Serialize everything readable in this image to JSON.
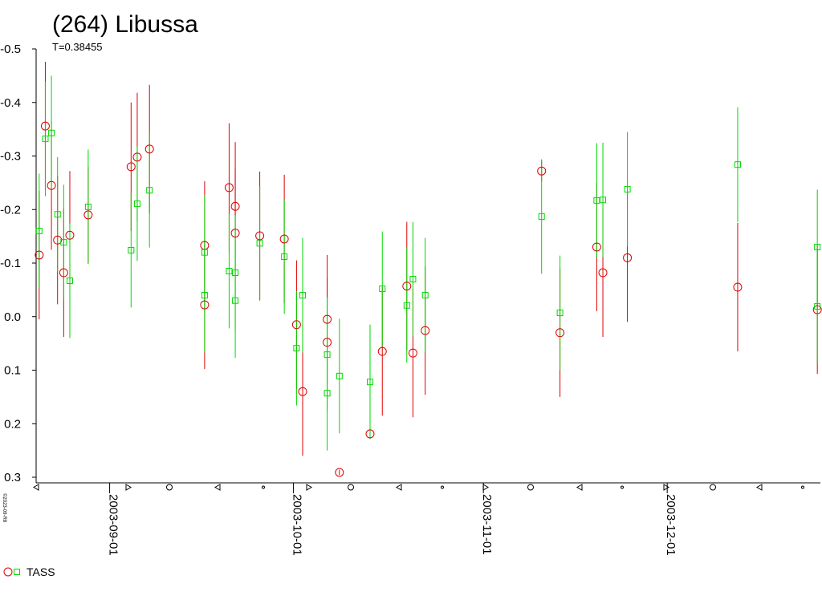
{
  "chart_data": {
    "type": "scatter",
    "title": "(264) Libussa",
    "subtitle": "T=0.38455",
    "annotations": [
      "©2023-09-R8"
    ],
    "xlim": [
      "2003-08-20",
      "2003-12-26"
    ],
    "xticks": [
      "2003-09-01",
      "2003-10-01",
      "2003-11-01",
      "2003-12-01"
    ],
    "ylim": [
      -0.5,
      0.3
    ],
    "inverted_y": true,
    "yticks": [
      -0.5,
      -0.4,
      -0.3,
      -0.2,
      -0.1,
      {
        "value": 0,
        "label": "0.0"
      },
      0.1,
      0.2,
      0.3
    ],
    "legend": "bottom-left",
    "series": [
      {
        "name": "TASS",
        "marker": "circle",
        "color": "#e00000",
        "marker2": "square",
        "color2": "#00d800",
        "x": [
          "2003-08-20",
          "2003-08-21",
          "2003-08-22",
          "2003-08-23",
          "2003-08-24",
          "2003-08-25",
          "2003-08-28",
          "2003-09-04",
          "2003-09-05",
          "2003-09-07",
          "2003-09-16",
          "2003-09-16",
          "2003-09-20",
          "2003-09-21",
          "2003-09-21",
          "2003-09-25",
          "2003-09-29",
          "2003-10-01",
          "2003-10-02",
          "2003-10-06",
          "2003-10-06",
          "2003-10-08",
          "2003-10-13",
          "2003-10-15",
          "2003-10-19",
          "2003-10-20",
          "2003-10-22",
          "2003-11-10",
          "2003-11-13",
          "2003-11-19",
          "2003-11-20",
          "2003-11-24",
          "2003-12-12",
          "2003-12-25",
          "2003-12-25"
        ],
        "values": [
          -0.115,
          -0.356,
          -0.245,
          -0.143,
          -0.082,
          -0.152,
          -0.19,
          -0.28,
          -0.298,
          -0.313,
          -0.133,
          -0.022,
          -0.241,
          -0.206,
          -0.156,
          -0.151,
          -0.145,
          0.015,
          0.14,
          0.005,
          0.048,
          0.291,
          0.219,
          0.065,
          -0.057,
          0.068,
          0.026,
          -0.272,
          0.03,
          -0.13,
          -0.082,
          -0.11,
          -0.055,
          -0.013,
          null
        ],
        "errors": [
          0.12,
          0.12,
          0.12,
          0.12,
          0.12,
          0.12,
          0.09,
          0.12,
          0.12,
          0.12,
          0.12,
          0.12,
          0.12,
          0.12,
          0.12,
          0.12,
          0.12,
          0.12,
          0.12,
          0.12,
          0.12,
          0.005,
          0.005,
          0.12,
          0.12,
          0.12,
          0.12,
          0.02,
          0.12,
          0.12,
          0.12,
          0.12,
          0.12,
          0.12,
          null
        ],
        "values2": [
          -0.16,
          -0.332,
          -0.343,
          -0.191,
          -0.139,
          -0.067,
          -0.205,
          -0.124,
          -0.211,
          -0.236,
          -0.12,
          -0.04,
          -0.085,
          -0.082,
          -0.03,
          -0.137,
          -0.112,
          0.059,
          -0.04,
          0.071,
          0.143,
          0.111,
          0.122,
          -0.052,
          -0.021,
          -0.07,
          -0.04,
          -0.187,
          -0.007,
          -0.217,
          -0.218,
          -0.238,
          -0.284,
          -0.019,
          -0.13
        ],
        "errors2": [
          0.107,
          0.107,
          0.107,
          0.107,
          0.107,
          0.107,
          0.107,
          0.107,
          0.107,
          0.107,
          0.107,
          0.107,
          0.107,
          0.107,
          0.107,
          0.107,
          0.107,
          0.107,
          0.107,
          0.107,
          0.107,
          0.107,
          0.107,
          0.107,
          0.107,
          0.107,
          0.107,
          0.107,
          0.107,
          0.107,
          0.107,
          0.107,
          0.107,
          0.107,
          0.107
        ]
      }
    ]
  }
}
